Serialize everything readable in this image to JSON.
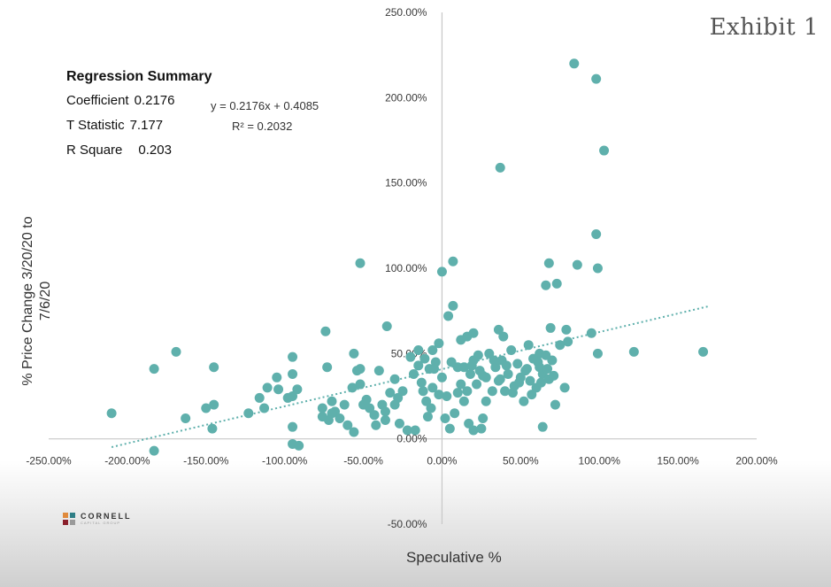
{
  "exhibit_label": "Exhibit 1",
  "regression_summary": {
    "title": "Regression Summary",
    "rows": [
      {
        "label": "Coefficient",
        "value": "0.2176"
      },
      {
        "label": "T Statistic",
        "value": "7.177"
      },
      {
        "label": "R Square",
        "value": "0.203"
      }
    ]
  },
  "logo": {
    "name": "CORNELL",
    "subtitle": "CAPITAL GROUP",
    "colors": [
      "#e08a3c",
      "#2f7f86",
      "#8a1f2b",
      "#9a9a9a"
    ]
  },
  "colors": {
    "points": "#5fb0ac",
    "trendline": "#5fb0ac"
  },
  "chart_data": {
    "type": "scatter",
    "title": "",
    "xlabel": "Speculative %",
    "ylabel": "% Price Change 3/20/20 to 7/6/20",
    "xlim": [
      -2.5,
      2.0
    ],
    "ylim": [
      -0.5,
      2.5
    ],
    "x_ticks": [
      -2.5,
      -2.0,
      -1.5,
      -1.0,
      -0.5,
      0.0,
      0.5,
      1.0,
      1.5,
      2.0
    ],
    "y_ticks": [
      -0.5,
      0.0,
      0.5,
      1.0,
      1.5,
      2.0,
      2.5
    ],
    "x_tick_labels": [
      "-250.00%",
      "-200.00%",
      "-150.00%",
      "-100.00%",
      "-50.00%",
      "0.00%",
      "50.00%",
      "100.00%",
      "150.00%",
      "200.00%"
    ],
    "y_tick_labels": [
      "-50.00%",
      "0.00%",
      "50.00%",
      "100.00%",
      "150.00%",
      "200.00%",
      "250.00%"
    ],
    "trendline": {
      "slope": 0.2176,
      "intercept": 0.4085,
      "x_range": [
        -2.1,
        1.7
      ],
      "equation": "y = 0.2176x + 0.4085",
      "r_squared": "R² = 0.2032"
    },
    "points": [
      [
        0.84,
        2.2
      ],
      [
        0.98,
        2.11
      ],
      [
        1.03,
        1.69
      ],
      [
        0.37,
        1.59
      ],
      [
        0.98,
        1.2
      ],
      [
        0.86,
        1.02
      ],
      [
        0.99,
        1.0
      ],
      [
        0.68,
        1.03
      ],
      [
        0.66,
        0.9
      ],
      [
        0.73,
        0.91
      ],
      [
        -0.52,
        1.03
      ],
      [
        0.07,
        1.04
      ],
      [
        0.0,
        0.98
      ],
      [
        0.07,
        0.78
      ],
      [
        0.04,
        0.72
      ],
      [
        -0.35,
        0.66
      ],
      [
        -0.74,
        0.63
      ],
      [
        0.95,
        0.62
      ],
      [
        0.69,
        0.65
      ],
      [
        0.79,
        0.64
      ],
      [
        1.22,
        0.51
      ],
      [
        1.66,
        0.51
      ],
      [
        0.99,
        0.5
      ],
      [
        0.36,
        0.64
      ],
      [
        0.39,
        0.6
      ],
      [
        0.62,
        0.5
      ],
      [
        0.55,
        0.55
      ],
      [
        0.16,
        0.6
      ],
      [
        0.2,
        0.62
      ],
      [
        0.12,
        0.58
      ],
      [
        -0.02,
        0.56
      ],
      [
        -0.06,
        0.52
      ],
      [
        -0.56,
        0.5
      ],
      [
        -0.95,
        0.48
      ],
      [
        -1.45,
        0.42
      ],
      [
        -1.69,
        0.51
      ],
      [
        -1.83,
        0.41
      ],
      [
        -2.1,
        0.15
      ],
      [
        -1.83,
        -0.07
      ],
      [
        -1.63,
        0.12
      ],
      [
        -1.5,
        0.18
      ],
      [
        -1.45,
        0.2
      ],
      [
        -1.46,
        0.06
      ],
      [
        -1.23,
        0.15
      ],
      [
        -1.16,
        0.24
      ],
      [
        -1.13,
        0.18
      ],
      [
        -1.11,
        0.3
      ],
      [
        -1.05,
        0.36
      ],
      [
        -1.04,
        0.29
      ],
      [
        -0.92,
        0.29
      ],
      [
        -0.95,
        0.25
      ],
      [
        -0.98,
        0.24
      ],
      [
        -0.95,
        0.38
      ],
      [
        -0.95,
        0.07
      ],
      [
        -0.95,
        -0.03
      ],
      [
        -0.91,
        -0.04
      ],
      [
        -0.76,
        0.18
      ],
      [
        -0.72,
        0.11
      ],
      [
        -0.7,
        0.22
      ],
      [
        -0.68,
        0.16
      ],
      [
        -0.65,
        0.12
      ],
      [
        -0.62,
        0.2
      ],
      [
        -0.6,
        0.08
      ],
      [
        -0.57,
        0.3
      ],
      [
        -0.54,
        0.4
      ],
      [
        -0.56,
        0.04
      ],
      [
        -0.52,
        0.41
      ],
      [
        -0.5,
        0.2
      ],
      [
        -0.46,
        0.18
      ],
      [
        -0.43,
        0.14
      ],
      [
        -0.4,
        0.4
      ],
      [
        -0.38,
        0.2
      ],
      [
        -0.36,
        0.11
      ],
      [
        -0.33,
        0.27
      ],
      [
        -0.3,
        0.35
      ],
      [
        -0.28,
        0.24
      ],
      [
        -0.25,
        0.28
      ],
      [
        -0.22,
        0.05
      ],
      [
        -0.2,
        0.48
      ],
      [
        -0.18,
        0.38
      ],
      [
        -0.15,
        0.43
      ],
      [
        -0.13,
        0.33
      ],
      [
        -0.1,
        0.22
      ],
      [
        -0.08,
        0.41
      ],
      [
        -0.06,
        0.3
      ],
      [
        -0.04,
        0.45
      ],
      [
        -0.02,
        0.26
      ],
      [
        0.0,
        0.36
      ],
      [
        0.02,
        0.12
      ],
      [
        0.03,
        0.25
      ],
      [
        0.05,
        0.06
      ],
      [
        0.08,
        0.15
      ],
      [
        0.1,
        0.42
      ],
      [
        0.12,
        0.32
      ],
      [
        0.14,
        0.22
      ],
      [
        0.16,
        0.28
      ],
      [
        0.18,
        0.38
      ],
      [
        0.2,
        0.46
      ],
      [
        0.22,
        0.32
      ],
      [
        0.24,
        0.4
      ],
      [
        0.26,
        0.12
      ],
      [
        0.28,
        0.36
      ],
      [
        0.3,
        0.5
      ],
      [
        0.32,
        0.28
      ],
      [
        0.34,
        0.42
      ],
      [
        0.36,
        0.34
      ],
      [
        0.38,
        0.46
      ],
      [
        0.4,
        0.28
      ],
      [
        0.42,
        0.38
      ],
      [
        0.44,
        0.52
      ],
      [
        0.46,
        0.31
      ],
      [
        0.48,
        0.44
      ],
      [
        0.5,
        0.36
      ],
      [
        0.52,
        0.22
      ],
      [
        0.54,
        0.41
      ],
      [
        0.56,
        0.34
      ],
      [
        0.58,
        0.47
      ],
      [
        0.6,
        0.3
      ],
      [
        0.62,
        0.42
      ],
      [
        0.64,
        0.38
      ],
      [
        0.66,
        0.49
      ],
      [
        0.68,
        0.35
      ],
      [
        0.7,
        0.46
      ],
      [
        0.72,
        0.2
      ],
      [
        0.75,
        0.55
      ],
      [
        0.78,
        0.3
      ],
      [
        0.8,
        0.57
      ],
      [
        0.64,
        0.07
      ],
      [
        0.2,
        0.05
      ],
      [
        0.25,
        0.06
      ],
      [
        -0.73,
        0.42
      ],
      [
        -0.7,
        0.15
      ],
      [
        -0.76,
        0.13
      ],
      [
        -0.52,
        0.32
      ],
      [
        -0.48,
        0.23
      ],
      [
        -0.42,
        0.08
      ],
      [
        -0.36,
        0.16
      ],
      [
        -0.3,
        0.2
      ],
      [
        -0.27,
        0.09
      ],
      [
        -0.17,
        0.05
      ],
      [
        -0.12,
        0.28
      ],
      [
        -0.09,
        0.13
      ],
      [
        -0.07,
        0.18
      ],
      [
        0.06,
        0.45
      ],
      [
        0.1,
        0.27
      ],
      [
        0.14,
        0.42
      ],
      [
        0.17,
        0.09
      ],
      [
        0.23,
        0.49
      ],
      [
        0.28,
        0.22
      ],
      [
        0.33,
        0.46
      ],
      [
        0.37,
        0.35
      ],
      [
        0.41,
        0.43
      ],
      [
        0.45,
        0.27
      ],
      [
        0.49,
        0.33
      ],
      [
        0.53,
        0.4
      ],
      [
        0.57,
        0.26
      ],
      [
        0.61,
        0.45
      ],
      [
        0.63,
        0.33
      ],
      [
        0.67,
        0.41
      ],
      [
        0.71,
        0.37
      ],
      [
        -0.15,
        0.52
      ],
      [
        -0.11,
        0.47
      ],
      [
        -0.05,
        0.41
      ],
      [
        0.19,
        0.43
      ],
      [
        0.26,
        0.37
      ]
    ]
  }
}
